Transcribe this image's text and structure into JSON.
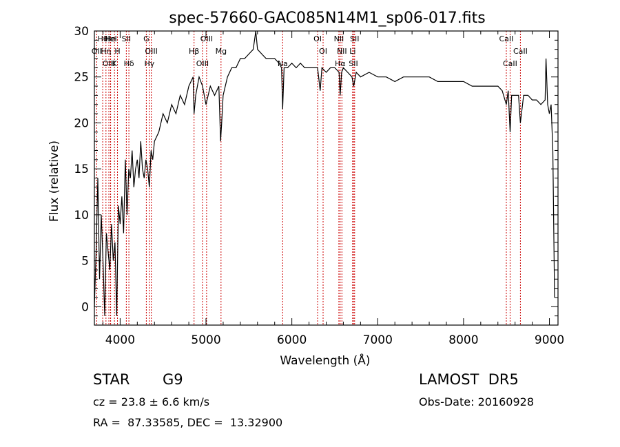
{
  "chart_data": {
    "type": "line",
    "title": "spec-57660-GAC085N14M1_sp06-017.fits",
    "xlabel": "Wavelength (Å)",
    "ylabel": "Flux (relative)",
    "xlim": [
      3700,
      9100
    ],
    "ylim": [
      -2,
      30
    ],
    "xticks": [
      4000,
      5000,
      6000,
      7000,
      8000,
      9000
    ],
    "yticks": [
      0,
      5,
      10,
      15,
      20,
      25,
      30
    ],
    "grid": false,
    "series": [
      {
        "x": [
          3700,
          3720,
          3740,
          3760,
          3780,
          3800,
          3820,
          3840,
          3860,
          3880,
          3900,
          3920,
          3940,
          3960,
          3980,
          4000,
          4020,
          4040,
          4060,
          4080,
          4100,
          4120,
          4140,
          4160,
          4180,
          4200,
          4220,
          4240,
          4260,
          4280,
          4300,
          4320,
          4340,
          4360,
          4380,
          4400,
          4450,
          4500,
          4550,
          4600,
          4650,
          4700,
          4750,
          4800,
          4850,
          4861,
          4880,
          4920,
          4960,
          5000,
          5050,
          5100,
          5150,
          5170,
          5183,
          5200,
          5250,
          5300,
          5350,
          5400,
          5450,
          5500,
          5550,
          5580,
          5600,
          5650,
          5700,
          5750,
          5800,
          5850,
          5880,
          5893,
          5910,
          5950,
          6000,
          6050,
          6100,
          6150,
          6200,
          6250,
          6300,
          6330,
          6350,
          6400,
          6450,
          6500,
          6550,
          6563,
          6580,
          6600,
          6650,
          6700,
          6720,
          6750,
          6800,
          6900,
          7000,
          7100,
          7200,
          7300,
          7400,
          7500,
          7600,
          7700,
          7800,
          7900,
          8000,
          8100,
          8200,
          8300,
          8400,
          8450,
          8498,
          8520,
          8542,
          8560,
          8600,
          8640,
          8662,
          8700,
          8750,
          8800,
          8850,
          8900,
          8950,
          8960,
          8980,
          9000,
          9020,
          9040,
          9060
        ],
        "values": [
          0,
          6,
          14,
          3,
          10,
          5,
          -1,
          8,
          6,
          4,
          9,
          5,
          7,
          -1,
          11,
          9,
          12,
          8,
          16,
          10,
          15,
          14,
          17,
          13,
          15,
          16,
          14,
          18,
          15,
          14,
          16,
          15,
          13,
          17,
          16,
          18,
          19,
          21,
          20,
          22,
          21,
          23,
          22,
          24,
          25,
          21,
          23,
          25,
          24,
          22,
          24,
          23,
          24,
          18,
          20,
          23,
          25,
          26,
          26,
          27,
          27,
          27.5,
          28,
          30,
          28,
          27.5,
          27,
          27,
          27,
          26.5,
          26,
          21.5,
          26,
          26,
          26.5,
          26,
          26.5,
          26,
          26,
          26,
          26,
          23.5,
          26,
          25.5,
          26,
          26,
          25.5,
          23,
          25.5,
          26,
          25.5,
          25,
          24,
          25.5,
          25,
          25.5,
          25,
          25,
          24.5,
          25,
          25,
          25,
          25,
          24.5,
          24.5,
          24.5,
          24.5,
          24,
          24,
          24,
          24,
          23.5,
          22,
          23.5,
          19,
          23,
          23,
          23,
          20,
          23,
          23,
          22.5,
          22.5,
          22,
          22.5,
          27,
          22,
          21,
          22,
          17,
          1
        ]
      }
    ],
    "line_markers": [
      {
        "label": "Hθ",
        "x": 3797
      },
      {
        "label": "OII",
        "x": 3727
      },
      {
        "label": "OIII",
        "x": 3869
      },
      {
        "label": "He",
        "x": 3889
      },
      {
        "label": "Hη",
        "x": 3835
      },
      {
        "label": "K",
        "x": 3934
      },
      {
        "label": "HeI",
        "x": 3889
      },
      {
        "label": "H",
        "x": 3969
      },
      {
        "label": "Hδ",
        "x": 4102
      },
      {
        "label": "SII",
        "x": 4072
      },
      {
        "label": "OIII",
        "x": 4363
      },
      {
        "label": "Hγ",
        "x": 4341
      },
      {
        "label": "G",
        "x": 4305
      },
      {
        "label": "Hβ",
        "x": 4861
      },
      {
        "label": "OIII",
        "x": 4959
      },
      {
        "label": "OIII",
        "x": 5007
      },
      {
        "label": "Mg",
        "x": 5175
      },
      {
        "label": "Na",
        "x": 5893
      },
      {
        "label": "OI",
        "x": 6300
      },
      {
        "label": "OI",
        "x": 6364
      },
      {
        "label": "Hα",
        "x": 6563
      },
      {
        "label": "NII",
        "x": 6548
      },
      {
        "label": "NII",
        "x": 6583
      },
      {
        "label": "SII",
        "x": 6717
      },
      {
        "label": "SII",
        "x": 6731
      },
      {
        "label": "Li",
        "x": 6708
      },
      {
        "label": "CaII",
        "x": 8542
      },
      {
        "label": "CaII",
        "x": 8498
      },
      {
        "label": "CaII",
        "x": 8662
      }
    ]
  },
  "info": {
    "object_class": "STAR",
    "subclass": "G9",
    "survey": "LAMOST  DR5",
    "cz": "cz = 23.8 ± 6.6 km/s",
    "obs_date": "Obs-Date: 20160928",
    "coords": "RA =  87.33585, DEC =  13.32900"
  },
  "colors": {
    "spectrum": "#000000",
    "marker_line": "#cc0000",
    "axes": "#000000"
  }
}
